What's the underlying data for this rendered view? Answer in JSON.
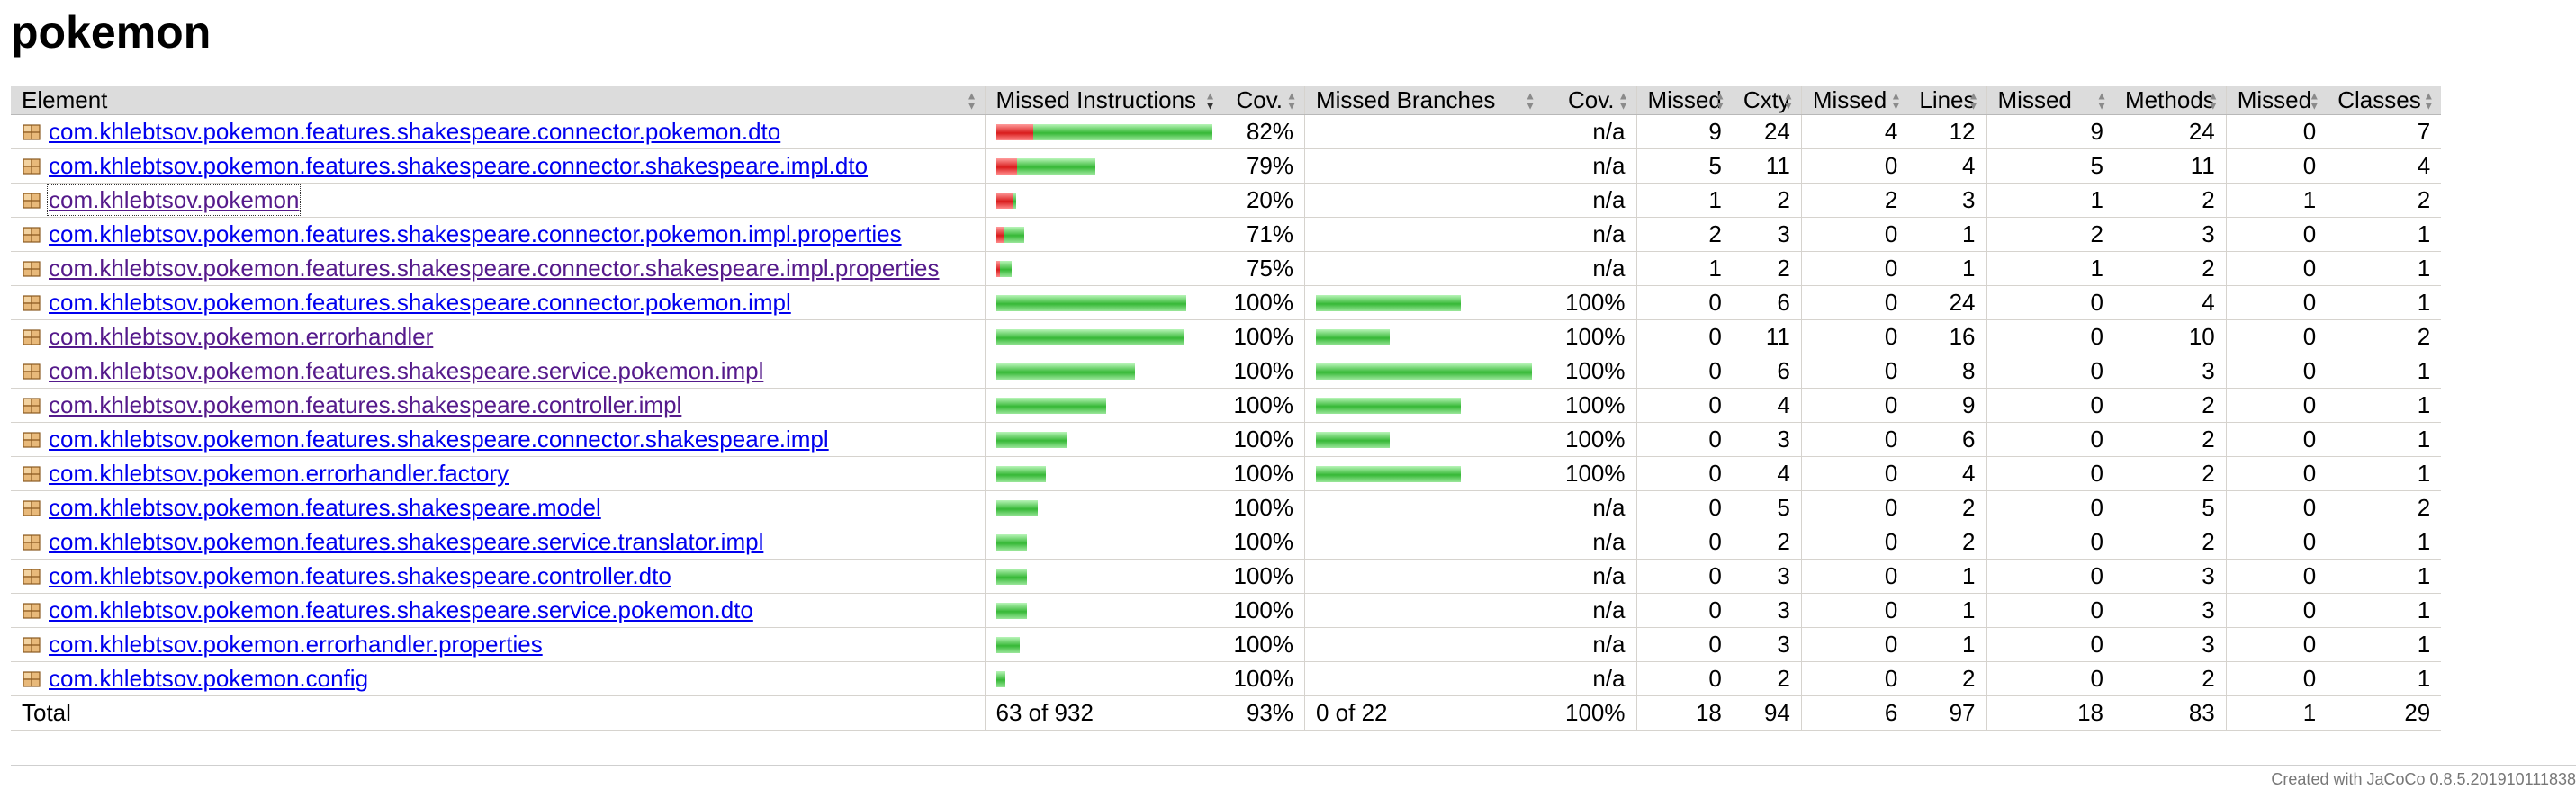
{
  "page_title": "pokemon",
  "table": {
    "headers": {
      "element": "Element",
      "missed_instructions": "Missed Instructions",
      "cov_instructions": "Cov.",
      "missed_branches": "Missed Branches",
      "cov_branches": "Cov.",
      "missed_cxty": "Missed",
      "cxty": "Cxty",
      "missed_lines": "Missed",
      "lines": "Lines",
      "missed_methods": "Missed",
      "methods": "Methods",
      "missed_classes": "Missed",
      "classes": "Classes"
    },
    "rows": [
      {
        "name": "com.khlebtsov.pokemon.features.shakespeare.connector.pokemon.dto",
        "link_state": "unvisited",
        "instr_bar": {
          "missed_frac": 0.17,
          "covered_frac": 0.83,
          "total_frac": 1.0
        },
        "instr_cov": "82%",
        "branch_bar": null,
        "branch_cov": "n/a",
        "missed_cxty": "9",
        "cxty": "24",
        "missed_lines": "4",
        "lines": "12",
        "missed_methods": "9",
        "methods": "24",
        "missed_classes": "0",
        "classes": "7"
      },
      {
        "name": "com.khlebtsov.pokemon.features.shakespeare.connector.shakespeare.impl.dto",
        "link_state": "unvisited",
        "instr_bar": {
          "missed_frac": 0.21,
          "covered_frac": 0.79,
          "total_frac": 0.46
        },
        "instr_cov": "79%",
        "branch_bar": null,
        "branch_cov": "n/a",
        "missed_cxty": "5",
        "cxty": "11",
        "missed_lines": "0",
        "lines": "4",
        "missed_methods": "5",
        "methods": "11",
        "missed_classes": "0",
        "classes": "4"
      },
      {
        "name": "com.khlebtsov.pokemon",
        "link_state": "visited-focused",
        "instr_bar": {
          "missed_frac": 0.8,
          "covered_frac": 0.2,
          "total_frac": 0.09
        },
        "instr_cov": "20%",
        "branch_bar": null,
        "branch_cov": "n/a",
        "missed_cxty": "1",
        "cxty": "2",
        "missed_lines": "2",
        "lines": "3",
        "missed_methods": "1",
        "methods": "2",
        "missed_classes": "1",
        "classes": "2"
      },
      {
        "name": "com.khlebtsov.pokemon.features.shakespeare.connector.pokemon.impl.properties",
        "link_state": "unvisited",
        "instr_bar": {
          "missed_frac": 0.29,
          "covered_frac": 0.71,
          "total_frac": 0.13
        },
        "instr_cov": "71%",
        "branch_bar": null,
        "branch_cov": "n/a",
        "missed_cxty": "2",
        "cxty": "3",
        "missed_lines": "0",
        "lines": "1",
        "missed_methods": "2",
        "methods": "3",
        "missed_classes": "0",
        "classes": "1"
      },
      {
        "name": "com.khlebtsov.pokemon.features.shakespeare.connector.shakespeare.impl.properties",
        "link_state": "visited",
        "instr_bar": {
          "missed_frac": 0.25,
          "covered_frac": 0.75,
          "total_frac": 0.07
        },
        "instr_cov": "75%",
        "branch_bar": null,
        "branch_cov": "n/a",
        "missed_cxty": "1",
        "cxty": "2",
        "missed_lines": "0",
        "lines": "1",
        "missed_methods": "1",
        "methods": "2",
        "missed_classes": "0",
        "classes": "1"
      },
      {
        "name": "com.khlebtsov.pokemon.features.shakespeare.connector.pokemon.impl",
        "link_state": "unvisited",
        "instr_bar": {
          "missed_frac": 0,
          "covered_frac": 1,
          "total_frac": 0.88
        },
        "instr_cov": "100%",
        "branch_bar": {
          "total_frac": 0.67
        },
        "branch_cov": "100%",
        "missed_cxty": "0",
        "cxty": "6",
        "missed_lines": "0",
        "lines": "24",
        "missed_methods": "0",
        "methods": "4",
        "missed_classes": "0",
        "classes": "1"
      },
      {
        "name": "com.khlebtsov.pokemon.errorhandler",
        "link_state": "visited",
        "instr_bar": {
          "missed_frac": 0,
          "covered_frac": 1,
          "total_frac": 0.87
        },
        "instr_cov": "100%",
        "branch_bar": {
          "total_frac": 0.34
        },
        "branch_cov": "100%",
        "missed_cxty": "0",
        "cxty": "11",
        "missed_lines": "0",
        "lines": "16",
        "missed_methods": "0",
        "methods": "10",
        "missed_classes": "0",
        "classes": "2"
      },
      {
        "name": "com.khlebtsov.pokemon.features.shakespeare.service.pokemon.impl",
        "link_state": "visited",
        "instr_bar": {
          "missed_frac": 0,
          "covered_frac": 1,
          "total_frac": 0.64
        },
        "instr_cov": "100%",
        "branch_bar": {
          "total_frac": 1.0
        },
        "branch_cov": "100%",
        "missed_cxty": "0",
        "cxty": "6",
        "missed_lines": "0",
        "lines": "8",
        "missed_methods": "0",
        "methods": "3",
        "missed_classes": "0",
        "classes": "1"
      },
      {
        "name": "com.khlebtsov.pokemon.features.shakespeare.controller.impl",
        "link_state": "visited",
        "instr_bar": {
          "missed_frac": 0,
          "covered_frac": 1,
          "total_frac": 0.51
        },
        "instr_cov": "100%",
        "branch_bar": {
          "total_frac": 0.67
        },
        "branch_cov": "100%",
        "missed_cxty": "0",
        "cxty": "4",
        "missed_lines": "0",
        "lines": "9",
        "missed_methods": "0",
        "methods": "2",
        "missed_classes": "0",
        "classes": "1"
      },
      {
        "name": "com.khlebtsov.pokemon.features.shakespeare.connector.shakespeare.impl",
        "link_state": "unvisited",
        "instr_bar": {
          "missed_frac": 0,
          "covered_frac": 1,
          "total_frac": 0.33
        },
        "instr_cov": "100%",
        "branch_bar": {
          "total_frac": 0.34
        },
        "branch_cov": "100%",
        "missed_cxty": "0",
        "cxty": "3",
        "missed_lines": "0",
        "lines": "6",
        "missed_methods": "0",
        "methods": "2",
        "missed_classes": "0",
        "classes": "1"
      },
      {
        "name": "com.khlebtsov.pokemon.errorhandler.factory",
        "link_state": "unvisited",
        "instr_bar": {
          "missed_frac": 0,
          "covered_frac": 1,
          "total_frac": 0.23
        },
        "instr_cov": "100%",
        "branch_bar": {
          "total_frac": 0.67
        },
        "branch_cov": "100%",
        "missed_cxty": "0",
        "cxty": "4",
        "missed_lines": "0",
        "lines": "4",
        "missed_methods": "0",
        "methods": "2",
        "missed_classes": "0",
        "classes": "1"
      },
      {
        "name": "com.khlebtsov.pokemon.features.shakespeare.model",
        "link_state": "unvisited",
        "instr_bar": {
          "missed_frac": 0,
          "covered_frac": 1,
          "total_frac": 0.19
        },
        "instr_cov": "100%",
        "branch_bar": null,
        "branch_cov": "n/a",
        "missed_cxty": "0",
        "cxty": "5",
        "missed_lines": "0",
        "lines": "2",
        "missed_methods": "0",
        "methods": "5",
        "missed_classes": "0",
        "classes": "2"
      },
      {
        "name": "com.khlebtsov.pokemon.features.shakespeare.service.translator.impl",
        "link_state": "unvisited",
        "instr_bar": {
          "missed_frac": 0,
          "covered_frac": 1,
          "total_frac": 0.14
        },
        "instr_cov": "100%",
        "branch_bar": null,
        "branch_cov": "n/a",
        "missed_cxty": "0",
        "cxty": "2",
        "missed_lines": "0",
        "lines": "2",
        "missed_methods": "0",
        "methods": "2",
        "missed_classes": "0",
        "classes": "1"
      },
      {
        "name": "com.khlebtsov.pokemon.features.shakespeare.controller.dto",
        "link_state": "unvisited",
        "instr_bar": {
          "missed_frac": 0,
          "covered_frac": 1,
          "total_frac": 0.14
        },
        "instr_cov": "100%",
        "branch_bar": null,
        "branch_cov": "n/a",
        "missed_cxty": "0",
        "cxty": "3",
        "missed_lines": "0",
        "lines": "1",
        "missed_methods": "0",
        "methods": "3",
        "missed_classes": "0",
        "classes": "1"
      },
      {
        "name": "com.khlebtsov.pokemon.features.shakespeare.service.pokemon.dto",
        "link_state": "unvisited",
        "instr_bar": {
          "missed_frac": 0,
          "covered_frac": 1,
          "total_frac": 0.14
        },
        "instr_cov": "100%",
        "branch_bar": null,
        "branch_cov": "n/a",
        "missed_cxty": "0",
        "cxty": "3",
        "missed_lines": "0",
        "lines": "1",
        "missed_methods": "0",
        "methods": "3",
        "missed_classes": "0",
        "classes": "1"
      },
      {
        "name": "com.khlebtsov.pokemon.errorhandler.properties",
        "link_state": "unvisited",
        "instr_bar": {
          "missed_frac": 0,
          "covered_frac": 1,
          "total_frac": 0.11
        },
        "instr_cov": "100%",
        "branch_bar": null,
        "branch_cov": "n/a",
        "missed_cxty": "0",
        "cxty": "3",
        "missed_lines": "0",
        "lines": "1",
        "missed_methods": "0",
        "methods": "3",
        "missed_classes": "0",
        "classes": "1"
      },
      {
        "name": "com.khlebtsov.pokemon.config",
        "link_state": "unvisited",
        "instr_bar": {
          "missed_frac": 0,
          "covered_frac": 1,
          "total_frac": 0.04
        },
        "instr_cov": "100%",
        "branch_bar": null,
        "branch_cov": "n/a",
        "missed_cxty": "0",
        "cxty": "2",
        "missed_lines": "0",
        "lines": "2",
        "missed_methods": "0",
        "methods": "2",
        "missed_classes": "0",
        "classes": "1"
      }
    ],
    "total": {
      "label": "Total",
      "missed_instructions": "63 of 932",
      "instr_cov": "93%",
      "missed_branches": "0 of 22",
      "branch_cov": "100%",
      "missed_cxty": "18",
      "cxty": "94",
      "missed_lines": "6",
      "lines": "97",
      "missed_methods": "18",
      "methods": "83",
      "missed_classes": "1",
      "classes": "29"
    }
  },
  "footer": {
    "text": "Created with JaCoCo 0.8.5.201910111838"
  },
  "colors": {
    "header_bg": "#dcdcdc",
    "link": "#0000ee",
    "link_visited": "#551a8b",
    "bar_missed": "#d91c1c",
    "bar_covered": "#36b836"
  }
}
